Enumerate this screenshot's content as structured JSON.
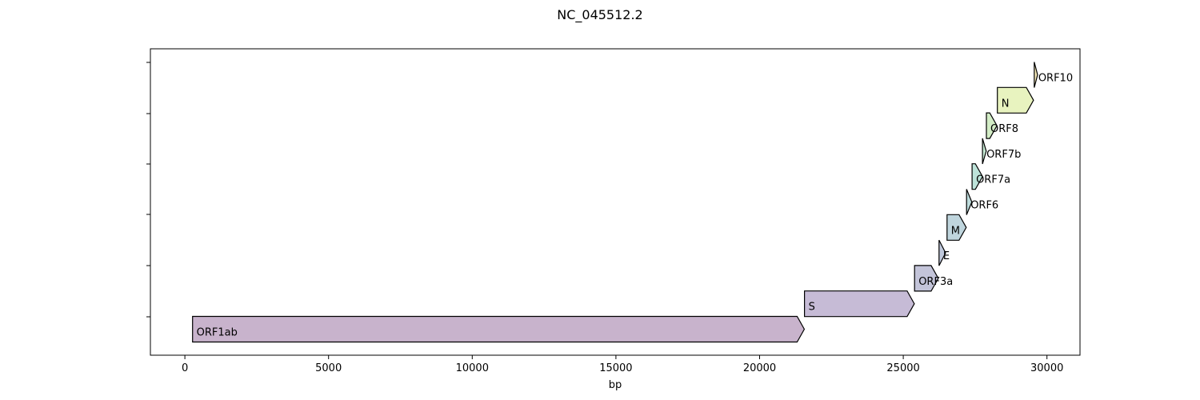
{
  "chart_data": {
    "type": "gene_map",
    "title": "NC_045512.2",
    "xlabel": "bp",
    "ylabel": "",
    "xlim": [
      -1200,
      31150
    ],
    "x_ticks": [
      0,
      5000,
      10000,
      15000,
      20000,
      25000,
      30000
    ],
    "genes": [
      {
        "name": "ORF1ab",
        "start": 266,
        "end": 21555,
        "strand": "+",
        "color": "#c8b3cc"
      },
      {
        "name": "S",
        "start": 21563,
        "end": 25384,
        "strand": "+",
        "color": "#c6bbd6"
      },
      {
        "name": "ORF3a",
        "start": 25393,
        "end": 26220,
        "strand": "+",
        "color": "#c3c4d9"
      },
      {
        "name": "E",
        "start": 26245,
        "end": 26472,
        "strand": "+",
        "color": "#c0c9dc"
      },
      {
        "name": "M",
        "start": 26523,
        "end": 27191,
        "strand": "+",
        "color": "#bfd5dd"
      },
      {
        "name": "ORF6",
        "start": 27202,
        "end": 27387,
        "strand": "+",
        "color": "#bedcdc"
      },
      {
        "name": "ORF7a",
        "start": 27394,
        "end": 27759,
        "strand": "+",
        "color": "#bde3d9"
      },
      {
        "name": "ORF7b",
        "start": 27756,
        "end": 27887,
        "strand": "+",
        "color": "#c4e8d2"
      },
      {
        "name": "ORF8",
        "start": 27894,
        "end": 28259,
        "strand": "+",
        "color": "#d3edc6"
      },
      {
        "name": "N",
        "start": 28274,
        "end": 29533,
        "strand": "+",
        "color": "#e8f3bf"
      },
      {
        "name": "ORF10",
        "start": 29558,
        "end": 29674,
        "strand": "+",
        "color": "#f1e4b3"
      }
    ]
  }
}
